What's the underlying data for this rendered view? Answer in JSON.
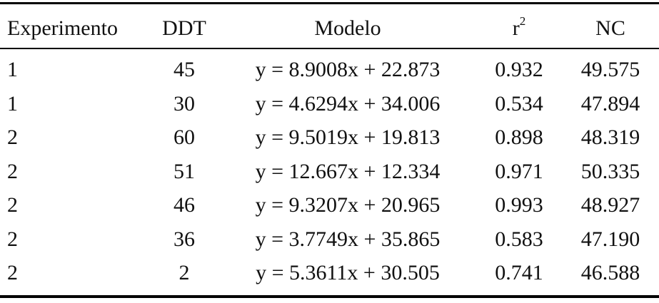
{
  "table": {
    "headers": [
      "Experimento",
      "DDT",
      "Modelo",
      {
        "text": "r",
        "superscript": "2"
      },
      "NC"
    ],
    "rows": [
      [
        "1",
        "45",
        "y = 8.9008x + 22.873",
        "0.932",
        "49.575"
      ],
      [
        "1",
        "30",
        "y = 4.6294x + 34.006",
        "0.534",
        "47.894"
      ],
      [
        "2",
        "60",
        "y = 9.5019x + 19.813",
        "0.898",
        "48.319"
      ],
      [
        "2",
        "51",
        "y = 12.667x + 12.334",
        "0.971",
        "50.335"
      ],
      [
        "2",
        "46",
        "y = 9.3207x + 20.965",
        "0.993",
        "48.927"
      ],
      [
        "2",
        "36",
        "y = 3.7749x + 35.865",
        "0.583",
        "47.190"
      ],
      [
        "2",
        "2",
        "y = 5.3611x + 30.505",
        "0.741",
        "46.588"
      ]
    ]
  }
}
